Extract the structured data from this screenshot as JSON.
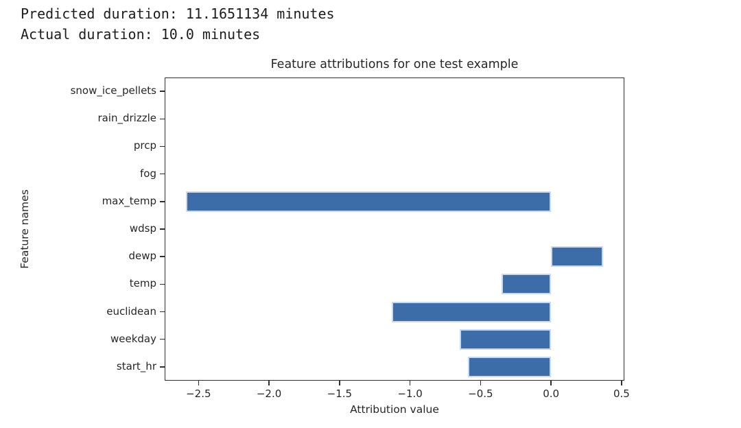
{
  "header": {
    "line1": "Predicted duration: 11.1651134 minutes",
    "line2": "Actual duration: 10.0 minutes"
  },
  "chart_data": {
    "type": "bar",
    "orientation": "horizontal",
    "title": "Feature attributions for one test example",
    "xlabel": "Attribution value",
    "ylabel": "Feature names",
    "categories": [
      "snow_ice_pellets",
      "rain_drizzle",
      "prcp",
      "fog",
      "max_temp",
      "wdsp",
      "dewp",
      "temp",
      "euclidean",
      "weekday",
      "start_hr"
    ],
    "values": [
      0,
      0,
      0,
      0,
      -2.59,
      0,
      0.37,
      -0.35,
      -1.13,
      -0.65,
      -0.59
    ],
    "xlim": [
      -2.74,
      0.52
    ],
    "xticks": [
      -2.5,
      -2.0,
      -1.5,
      -1.0,
      -0.5,
      0.0,
      0.5
    ],
    "xtick_labels": [
      "−2.5",
      "−2.0",
      "−1.5",
      "−1.0",
      "−0.5",
      "0.0",
      "0.5"
    ],
    "grid": false,
    "legend": null,
    "bar_color": "#3d6da8",
    "bar_edge_color": "#c9d8ec",
    "text_color": "#262626"
  }
}
